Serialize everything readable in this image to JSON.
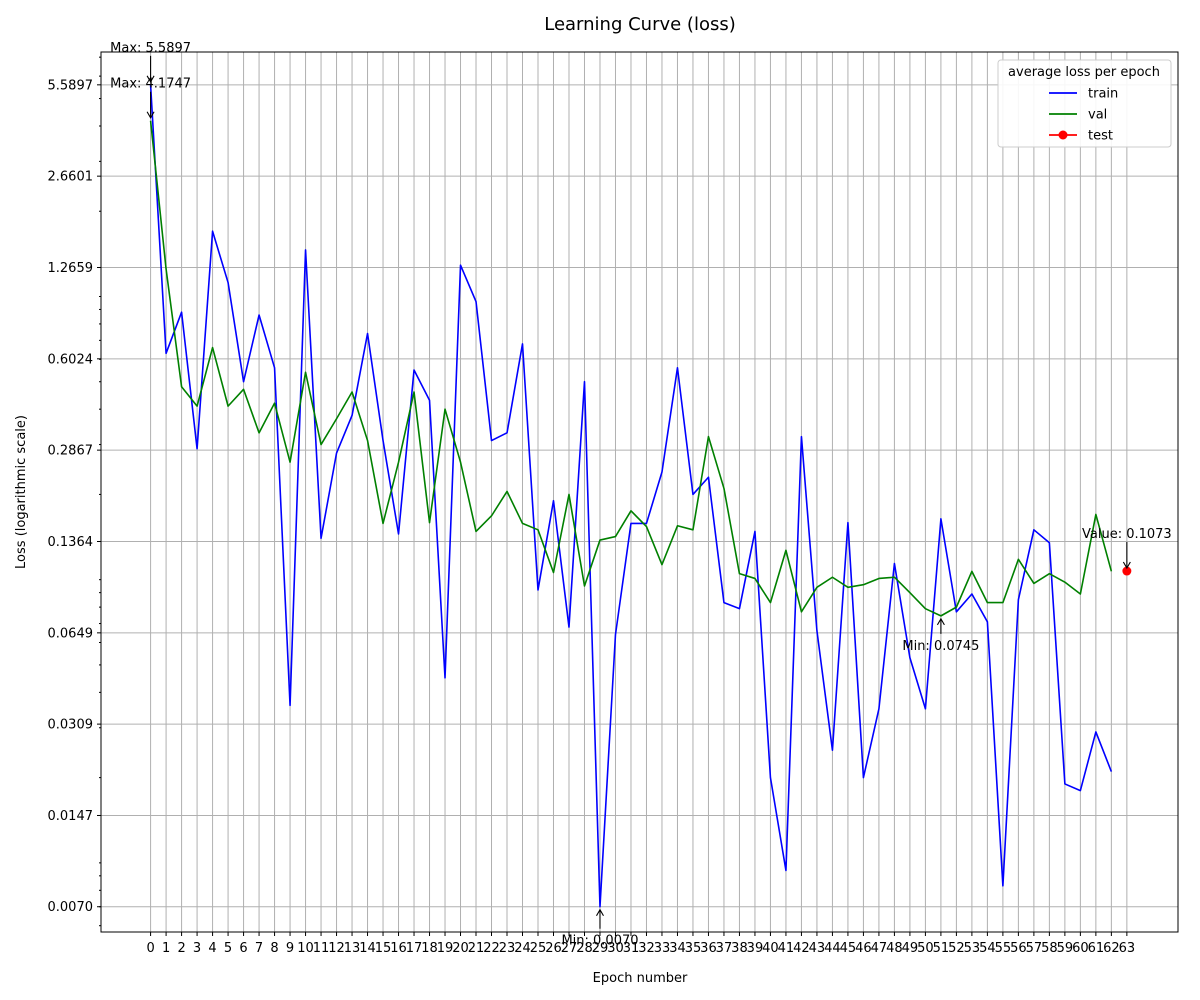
{
  "chart_data": {
    "type": "line",
    "title": "Learning Curve (loss)",
    "xlabel": "Epoch number",
    "ylabel": "Loss (logarithmic scale)",
    "yscale": "log",
    "xlim": [
      -3.2,
      66.3
    ],
    "ylim": [
      0.0057,
      7.3
    ],
    "yticks": [
      0.007,
      0.0147,
      0.0309,
      0.0649,
      0.1364,
      0.2867,
      0.6024,
      1.2659,
      2.6601,
      5.5897
    ],
    "ytick_labels": [
      "0.0070",
      "0.0147",
      "0.0309",
      "0.0649",
      "0.1364",
      "0.2867",
      "0.6024",
      "1.2659",
      "2.6601",
      "5.5897"
    ],
    "grid": true,
    "legend": {
      "title": "average loss per epoch",
      "placement": "top-right"
    },
    "series": [
      {
        "name": "train",
        "color": "#0000ff",
        "x": [
          0,
          1,
          2,
          3,
          4,
          5,
          6,
          7,
          8,
          9,
          10,
          11,
          12,
          13,
          14,
          15,
          16,
          17,
          18,
          19,
          20,
          21,
          22,
          23,
          24,
          25,
          26,
          27,
          28,
          29,
          30,
          31,
          32,
          33,
          34,
          35,
          36,
          37,
          38,
          39,
          40,
          41,
          42,
          43,
          44,
          45,
          46,
          47,
          48,
          49,
          50,
          51,
          52,
          53,
          54,
          55,
          56,
          57,
          58,
          59,
          60,
          61,
          62
        ],
        "values": [
          5.5897,
          0.63,
          0.88,
          0.29,
          1.7,
          1.12,
          0.5,
          0.86,
          0.56,
          0.036,
          1.46,
          0.14,
          0.28,
          0.38,
          0.74,
          0.31,
          0.145,
          0.55,
          0.43,
          0.045,
          1.29,
          0.96,
          0.31,
          0.33,
          0.68,
          0.092,
          0.19,
          0.068,
          0.5,
          0.007,
          0.064,
          0.158,
          0.158,
          0.24,
          0.56,
          0.2,
          0.23,
          0.083,
          0.079,
          0.148,
          0.02,
          0.0094,
          0.32,
          0.066,
          0.025,
          0.159,
          0.02,
          0.035,
          0.114,
          0.053,
          0.035,
          0.164,
          0.077,
          0.089,
          0.071,
          0.0083,
          0.085,
          0.15,
          0.135,
          0.019,
          0.018,
          0.029,
          0.021
        ]
      },
      {
        "name": "val",
        "color": "#008000",
        "x": [
          0,
          1,
          2,
          3,
          4,
          5,
          6,
          7,
          8,
          9,
          10,
          11,
          12,
          13,
          14,
          15,
          16,
          17,
          18,
          19,
          20,
          21,
          22,
          23,
          24,
          25,
          26,
          27,
          28,
          29,
          30,
          31,
          32,
          33,
          34,
          35,
          36,
          37,
          38,
          39,
          40,
          41,
          42,
          43,
          44,
          45,
          46,
          47,
          48,
          49,
          50,
          51,
          52,
          53,
          54,
          55,
          56,
          57,
          58,
          59,
          60,
          61,
          62
        ],
        "values": [
          4.1747,
          1.25,
          0.48,
          0.41,
          0.66,
          0.41,
          0.47,
          0.33,
          0.42,
          0.26,
          0.54,
          0.3,
          0.37,
          0.46,
          0.31,
          0.158,
          0.26,
          0.46,
          0.159,
          0.4,
          0.26,
          0.148,
          0.168,
          0.205,
          0.158,
          0.15,
          0.106,
          0.2,
          0.095,
          0.138,
          0.142,
          0.175,
          0.154,
          0.113,
          0.155,
          0.15,
          0.32,
          0.21,
          0.105,
          0.101,
          0.083,
          0.127,
          0.077,
          0.094,
          0.102,
          0.094,
          0.096,
          0.101,
          0.102,
          0.09,
          0.079,
          0.0745,
          0.08,
          0.107,
          0.083,
          0.083,
          0.118,
          0.097,
          0.105,
          0.098,
          0.089,
          0.17,
          0.107
        ]
      },
      {
        "name": "test",
        "color": "#ff0000",
        "marker": "circle",
        "x": [
          63
        ],
        "values": [
          0.1073
        ]
      }
    ],
    "annotations": [
      {
        "text": "Max: 5.5897",
        "x": 0,
        "y": 5.5897
      },
      {
        "text": "Max: 4.1747",
        "x": 0,
        "y": 4.1747
      },
      {
        "text": "Min: 0.0070",
        "x": 29,
        "y": 0.007
      },
      {
        "text": "Min: 0.0745",
        "x": 51,
        "y": 0.0745
      },
      {
        "text": "Value: 0.1073",
        "x": 63,
        "y": 0.1073
      }
    ]
  }
}
